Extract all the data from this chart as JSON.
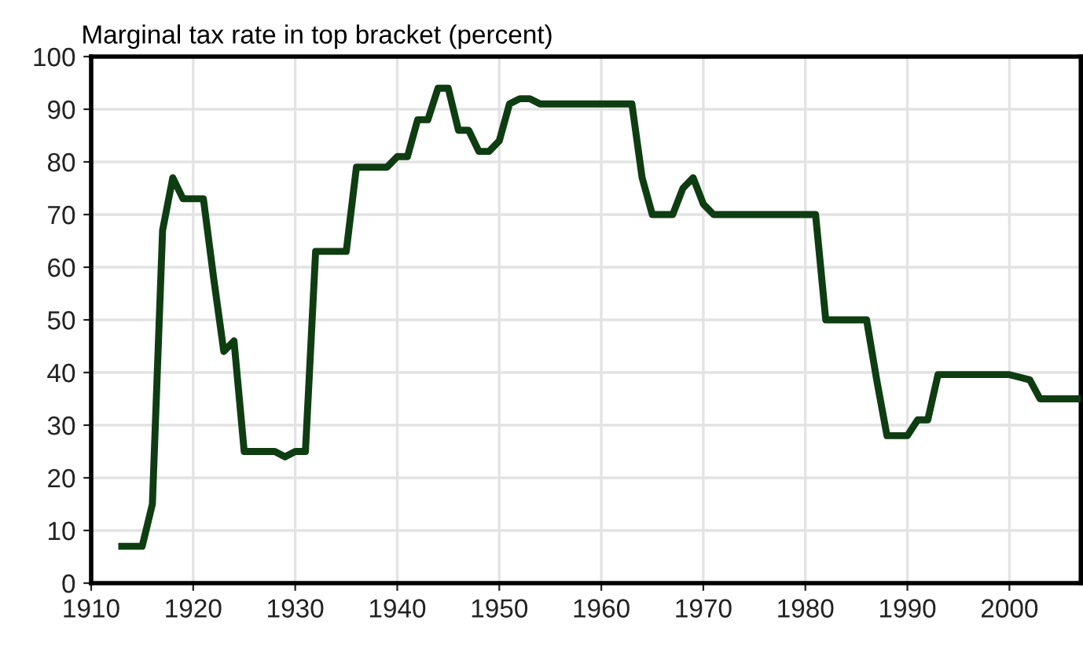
{
  "chart_data": {
    "type": "line",
    "title": "Marginal tax rate in top bracket (percent)",
    "x": [
      1913,
      1915,
      1916,
      1917,
      1918,
      1919,
      1921,
      1922,
      1923,
      1924,
      1925,
      1928,
      1929,
      1930,
      1931,
      1932,
      1935,
      1936,
      1939,
      1940,
      1941,
      1942,
      1943,
      1944,
      1945,
      1946,
      1947,
      1948,
      1949,
      1950,
      1951,
      1952,
      1953,
      1954,
      1963,
      1964,
      1965,
      1967,
      1968,
      1969,
      1970,
      1971,
      1981,
      1982,
      1986,
      1987,
      1988,
      1990,
      1991,
      1992,
      1993,
      2000,
      2001,
      2002,
      2003,
      2007
    ],
    "series": [
      {
        "color": "#0f3d12",
        "values": [
          7,
          7,
          15,
          67,
          77,
          73,
          73,
          58,
          44,
          46,
          25,
          25,
          24,
          25,
          25,
          63,
          63,
          79,
          79,
          81,
          81,
          88,
          88,
          94,
          94,
          86,
          86,
          82,
          82,
          84,
          91,
          92,
          92,
          91,
          91,
          77,
          70,
          70,
          75,
          77,
          72,
          70,
          70,
          50,
          50,
          38.5,
          28,
          28,
          31,
          31,
          39.6,
          39.6,
          39.1,
          38.6,
          35,
          35
        ]
      }
    ],
    "xlim": [
      1910,
      2007
    ],
    "ylim": [
      0,
      100
    ],
    "xticks": [
      1910,
      1920,
      1930,
      1940,
      1950,
      1960,
      1970,
      1980,
      1990,
      2000
    ],
    "yticks": [
      0,
      10,
      20,
      30,
      40,
      50,
      60,
      70,
      80,
      90,
      100
    ],
    "grid": true,
    "legend": false,
    "marker": "none",
    "line_style": "solid"
  }
}
